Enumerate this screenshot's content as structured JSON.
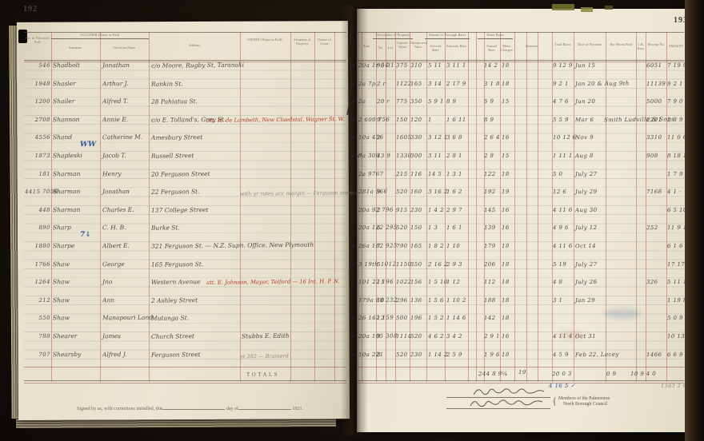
{
  "photo": {
    "page_left_no": "192",
    "page_right_no": "193"
  },
  "headers": {
    "left": {
      "no_roll": "No. in Valuation Roll",
      "occupier_group": "OCCUPIER (Name in Full)",
      "surname": "Surname",
      "christian": "Christian Name",
      "address": "Address",
      "owner": "OWNER (Name in Full)",
      "situation": "Situation of Property",
      "lease": "Nature of Lease"
    },
    "right": {
      "area": "Area",
      "desc_group": "Description of Property",
      "no": "No.",
      "lot": "Lot",
      "capital": "Capital Value",
      "unimproved": "Unimproved Value",
      "rates_group": "Amount of Borough Rates",
      "general": "General Rate",
      "separate": "Separate Rate",
      "water_group": "Water Rates",
      "annual": "Annual Rate",
      "meter": "Meter Charges",
      "remarks": "Remarks",
      "total": "Total Rates",
      "date": "Date of Payment",
      "by_whom": "By Whom Paid",
      "fees": "C.B. Fees",
      "receipt": "Receipt No.",
      "amount": "AMOUNT"
    }
  },
  "rows": [
    {
      "tick": "✓",
      "roll": "546",
      "surname": "Shadbolt",
      "christian": "Jonathan",
      "address": "c/o Moore, Rugby St, Taranaki",
      "owner": "",
      "red": "",
      "pencil": "",
      "blue": "",
      "area": "20a 1r 34",
      "sec": "96 31",
      "capital": "375",
      "unimp": "310",
      "gen": "5 11",
      "sep": "3 11 1",
      "val": "14 2",
      "folio": "18",
      "total": "9 12 9",
      "date": "Jun 15",
      "bywhom": "",
      "receipt": "6051",
      "amount": "7 19 9 ·"
    },
    {
      "tick": "✓",
      "roll": "1948",
      "surname": "Shasler",
      "christian": "Arthur J.",
      "address": "Rankin St.",
      "owner": "",
      "red": "",
      "pencil": "",
      "blue": "",
      "area": "2a 7p",
      "sec": "2 r",
      "capital": "1122",
      "unimp": "165",
      "gen": "3 14",
      "sep": "2 17 9",
      "val": "3 1 8",
      "folio": "18",
      "total": "9 2 1",
      "date": "Jan 20 & Aug 9th",
      "bywhom": "",
      "receipt": "11139",
      "amount": "9 2 1 ✗"
    },
    {
      "tick": "✓",
      "roll": "1200",
      "surname": "Shailer",
      "christian": "Alfred T.",
      "address": "28 Pahiatua St.",
      "owner": "",
      "red": "",
      "pencil": "",
      "blue": "",
      "area": "2a",
      "sec": "20 r",
      "capital": "775",
      "unimp": "350",
      "gen": "5 9 1",
      "sep": "8 9",
      "val": "5 9",
      "folio": "15",
      "total": "4 7 6",
      "date": "Jun 20",
      "bywhom": "",
      "receipt": "5000",
      "amount": "7 9 0 ✗"
    },
    {
      "tick": "✓",
      "roll": "2708",
      "surname": "Shannon",
      "christian": "Annie E.",
      "address": "c/o E. Tolland's, Grey St.",
      "owner": "",
      "red": "att. H. de Lambeth, New Cluedstal, Wagner St. W.",
      "pencil": "",
      "blue": "",
      "area": "2 600 756",
      "sec": "9",
      "capital": "150",
      "unimp": "120",
      "gen": "1",
      "sep": "1 6 11",
      "val": "8 9",
      "folio": "",
      "total": "5 5 9",
      "date": "Mar 6",
      "bywhom": "Smith Ludville & Sons",
      "receipt": "2291",
      "amount": "2 8 9 ="
    },
    {
      "tick": "✓",
      "roll": "4556",
      "surname": "Shand",
      "christian": "Catherine M.",
      "address": "Amesbury Street",
      "owner": "",
      "red": "",
      "pencil": "",
      "blue": "WW",
      "area": "10a 456",
      "sec": "2",
      "capital": "1605",
      "unimp": "330",
      "gen": "3 12 1",
      "sep": "3 6 8",
      "val": "2 6 4",
      "folio": "16",
      "total": "10 12 6",
      "date": "Nov 9",
      "bywhom": "",
      "receipt": "3310",
      "amount": "11 0 6 ✗"
    },
    {
      "tick": "✓✓",
      "roll": "1873",
      "surname": "Shapleski",
      "christian": "Jacob T.",
      "address": "Russell Street",
      "owner": "",
      "red": "",
      "pencil": "",
      "blue": "",
      "area": "9a 300",
      "sec": "43 9",
      "capital": "1330",
      "unimp": "300",
      "gen": "3 11",
      "sep": "2 8 1",
      "val": "2 8",
      "folio": "15",
      "total": "1 11 1",
      "date": "Aug 8",
      "bywhom": "",
      "receipt": "908",
      "amount": "8 18 1 ✓"
    },
    {
      "tick": "",
      "roll": "181",
      "surname": "Sharman",
      "christian": "Henry",
      "address": "20 Ferguson Street",
      "owner": "",
      "red": "",
      "pencil": "",
      "blue": "",
      "area": "2a 9767",
      "sec": "",
      "capital": "215",
      "unimp": "116",
      "gen": "14 5",
      "sep": "1 3 1",
      "val": "122",
      "folio": "18",
      "total": "5 0",
      "date": "July 27",
      "bywhom": "",
      "receipt": "",
      "amount": "1 7 9"
    },
    {
      "tick": "",
      "roll": "4415 7056",
      "surname": "Sharman",
      "christian": "Jonathan",
      "address": "22 Ferguson St.",
      "owner": "",
      "red": "",
      "pencil": "with yr rates acc margin — Ferguson avenue",
      "blue": "",
      "area": "281a 566",
      "sec": "9",
      "capital": "520",
      "unimp": "160",
      "gen": "3 16 2",
      "sep": "1 6 2",
      "val": "192",
      "folio": "19",
      "total": "12 6",
      "date": "July 29",
      "bywhom": "",
      "receipt": "7168",
      "amount": "4 1 ·"
    },
    {
      "tick": "",
      "roll": "448",
      "surname": "Sharman",
      "christian": "Charles E.",
      "address": "137 College Street",
      "owner": "",
      "red": "",
      "pencil": "",
      "blue": "",
      "area": "20a 92 796",
      "sec": "2",
      "capital": "915",
      "unimp": "230",
      "gen": "1 4 2",
      "sep": "2 9 7",
      "val": "145",
      "folio": "16",
      "total": "4 11 6",
      "date": "Aug 30",
      "bywhom": "",
      "receipt": "",
      "amount": "6 5 10 ✗"
    },
    {
      "tick": "",
      "roll": "890",
      "surname": "Sharp",
      "christian": "C. H. B.",
      "address": "Burke St.",
      "owner": "",
      "red": "",
      "pencil": "",
      "blue": "7↓",
      "area": "20a 122 295",
      "sec": "6",
      "capital": "520",
      "unimp": "150",
      "gen": "1 3",
      "sep": "1 6 1",
      "val": "139",
      "folio": "16",
      "total": "4 9 6",
      "date": "July 12",
      "bywhom": "",
      "receipt": "252",
      "amount": "11 9 10"
    },
    {
      "tick": "✓",
      "roll": "1880",
      "surname": "Sharpe",
      "christian": "Albert E.",
      "address": "321 Ferguson St. — N.Z. Supn. Office, New Plymouth",
      "owner": "",
      "red": "",
      "pencil": "",
      "blue": "",
      "area": "26a 162 925",
      "sec": "7",
      "capital": "790",
      "unimp": "165",
      "gen": "1 8 2",
      "sep": "1 10",
      "val": "179",
      "folio": "18",
      "total": "4 11 6",
      "date": "Oct 14",
      "bywhom": "",
      "receipt": "",
      "amount": "6 1 6 ✗"
    },
    {
      "tick": "✓",
      "roll": "1766",
      "surname": "Shaw",
      "christian": "George",
      "address": "165 Ferguson St.",
      "owner": "",
      "red": "",
      "pencil": "",
      "blue": "",
      "area": "3 19th 1012",
      "sec": "5",
      "capital": "1150",
      "unimp": "350",
      "gen": "2 16 2",
      "sep": "2 9 3",
      "val": "206",
      "folio": "18",
      "total": "5 19",
      "date": "July 27",
      "bywhom": "",
      "receipt": "",
      "amount": "17 17 11"
    },
    {
      "tick": "",
      "roll": "1264",
      "surname": "Shaw",
      "christian": "Jno",
      "address": "Western Avenue",
      "owner": "",
      "red": "att. E. Johnson, Mayor, Telford — 16 Int. H. P. N.",
      "pencil": "",
      "blue": "",
      "area": "101 22 196",
      "sec": "11",
      "capital": "1022",
      "unimp": "156",
      "gen": "1 5 10",
      "sep": "1 12",
      "val": "112",
      "folio": "18",
      "total": "4 8",
      "date": "July 26",
      "bywhom": "",
      "receipt": "326",
      "amount": "5 11 1"
    },
    {
      "tick": "",
      "roll": "212",
      "surname": "Shaw",
      "christian": "Ann",
      "address": "2 Ashley Street",
      "owner": "",
      "red": "",
      "pencil": "",
      "blue": "",
      "area": "179a 88 232",
      "sec": "10",
      "capital": "296",
      "unimp": "136",
      "gen": "1 5 6",
      "sep": "1 10 2",
      "val": "188",
      "folio": "18",
      "total": "3 1",
      "date": "Jan 29",
      "bywhom": "",
      "receipt": "",
      "amount": "1 19 8 ✗"
    },
    {
      "tick": "✓",
      "roll": "550",
      "surname": "Shaw",
      "christian": "Manapouri Land,",
      "address": "Mutanga St.",
      "owner": "",
      "red": "",
      "pencil": "",
      "blue": "",
      "area": "26 162 159",
      "sec": "12",
      "capital": "500",
      "unimp": "196",
      "gen": "1 5 2",
      "sep": "1 14 6",
      "val": "142",
      "folio": "18",
      "total": "",
      "date": "",
      "bywhom": "",
      "receipt": "",
      "amount": "5 0 9 ·"
    },
    {
      "tick": "✓",
      "roll": "788",
      "surname": "Shearer",
      "christian": "James",
      "address": "Church Street",
      "owner": "Stubbs E. Edith",
      "red": "",
      "pencil": "",
      "blue": "",
      "area": "20a 105 308",
      "sec": "9",
      "capital": "1114",
      "unimp": "520",
      "gen": "4 6 2",
      "sep": "3 4 2",
      "val": "2 9 1",
      "folio": "16",
      "total": "4 11 4",
      "date": "Oct 31",
      "bywhom": "",
      "receipt": "",
      "amount": "10 13 2 ✗"
    },
    {
      "tick": "✓",
      "roll": "707",
      "surname": "Shearsby",
      "christian": "Alfred J.",
      "address": "Ferguson Street",
      "owner": "",
      "red": "",
      "pencil": "at 282 — Brainerd",
      "blue": "",
      "area": "10a 221",
      "sec": "8",
      "capital": "520",
      "unimp": "230",
      "gen": "1 14 2",
      "sep": "2 5 9",
      "val": "1 9 6",
      "folio": "18",
      "total": "4 5 9",
      "date": "Feb 22, Lacey",
      "bywhom": "",
      "receipt": "1466",
      "amount": "6 6 9 ✗"
    }
  ],
  "totals": {
    "label": "TOTALS",
    "val": "244 8 9¼",
    "folio": "19",
    "total": "20 0 3",
    "fees": "0 9",
    "receipt": "10 9 4 0",
    "blue_note": "4 16 5 ✓",
    "pencil_note": "1363 2 6"
  },
  "footer": {
    "signed_line": "Signed by us, with corrections initialled, this",
    "day_of": "day of",
    "year": "1921.",
    "members_line1": "Members of the Palmerston",
    "members_line2": "North Borough Council"
  },
  "colors": {
    "paper": "#ebe5d1",
    "rule_red": "#ba5442",
    "rule_blue": "#7d9ba5",
    "ink": "#4f4a41",
    "ink_red": "#b13a2b",
    "ink_blue": "#33549c",
    "pencil": "#938c7b",
    "cover": "#17110c"
  }
}
